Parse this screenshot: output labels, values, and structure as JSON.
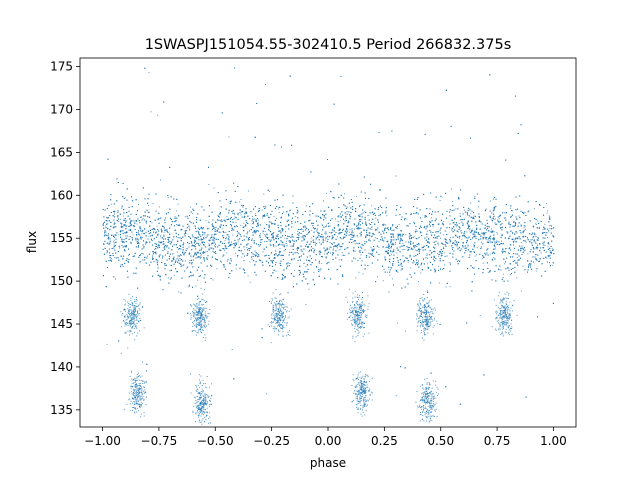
{
  "chart_data": {
    "type": "scatter",
    "title": "1SWASPJ151054.55-302410.5 Period 266832.375s",
    "xlabel": "phase",
    "ylabel": "flux",
    "xlim": [
      -1.1,
      1.1
    ],
    "ylim": [
      133,
      176
    ],
    "xticks": [
      -1.0,
      -0.75,
      -0.5,
      -0.25,
      0.0,
      0.25,
      0.5,
      0.75,
      1.0
    ],
    "xtick_labels": [
      "−1.00",
      "−0.75",
      "−0.50",
      "−0.25",
      "0.00",
      "0.25",
      "0.50",
      "0.75",
      "1.00"
    ],
    "yticks": [
      135,
      140,
      145,
      150,
      155,
      160,
      165,
      170,
      175
    ],
    "ytick_labels": [
      "135",
      "140",
      "145",
      "150",
      "155",
      "160",
      "165",
      "170",
      "175"
    ],
    "grid": false,
    "marker_color": "#1f77b4",
    "series": [
      {
        "phase_range": [
          -1.0,
          1.0
        ],
        "baseline_flux": 155,
        "baseline_scatter": 2.2,
        "point_count_estimate": 30000,
        "dip_features": [
          {
            "phase": -0.87,
            "flux": 146
          },
          {
            "phase": -0.85,
            "flux": 137
          },
          {
            "phase": -0.57,
            "flux": 146
          },
          {
            "phase": -0.56,
            "flux": 136
          },
          {
            "phase": -0.22,
            "flux": 146
          },
          {
            "phase": 0.13,
            "flux": 146
          },
          {
            "phase": 0.15,
            "flux": 137
          },
          {
            "phase": 0.43,
            "flux": 146
          },
          {
            "phase": 0.44,
            "flux": 136
          },
          {
            "phase": 0.78,
            "flux": 146
          }
        ]
      }
    ]
  }
}
